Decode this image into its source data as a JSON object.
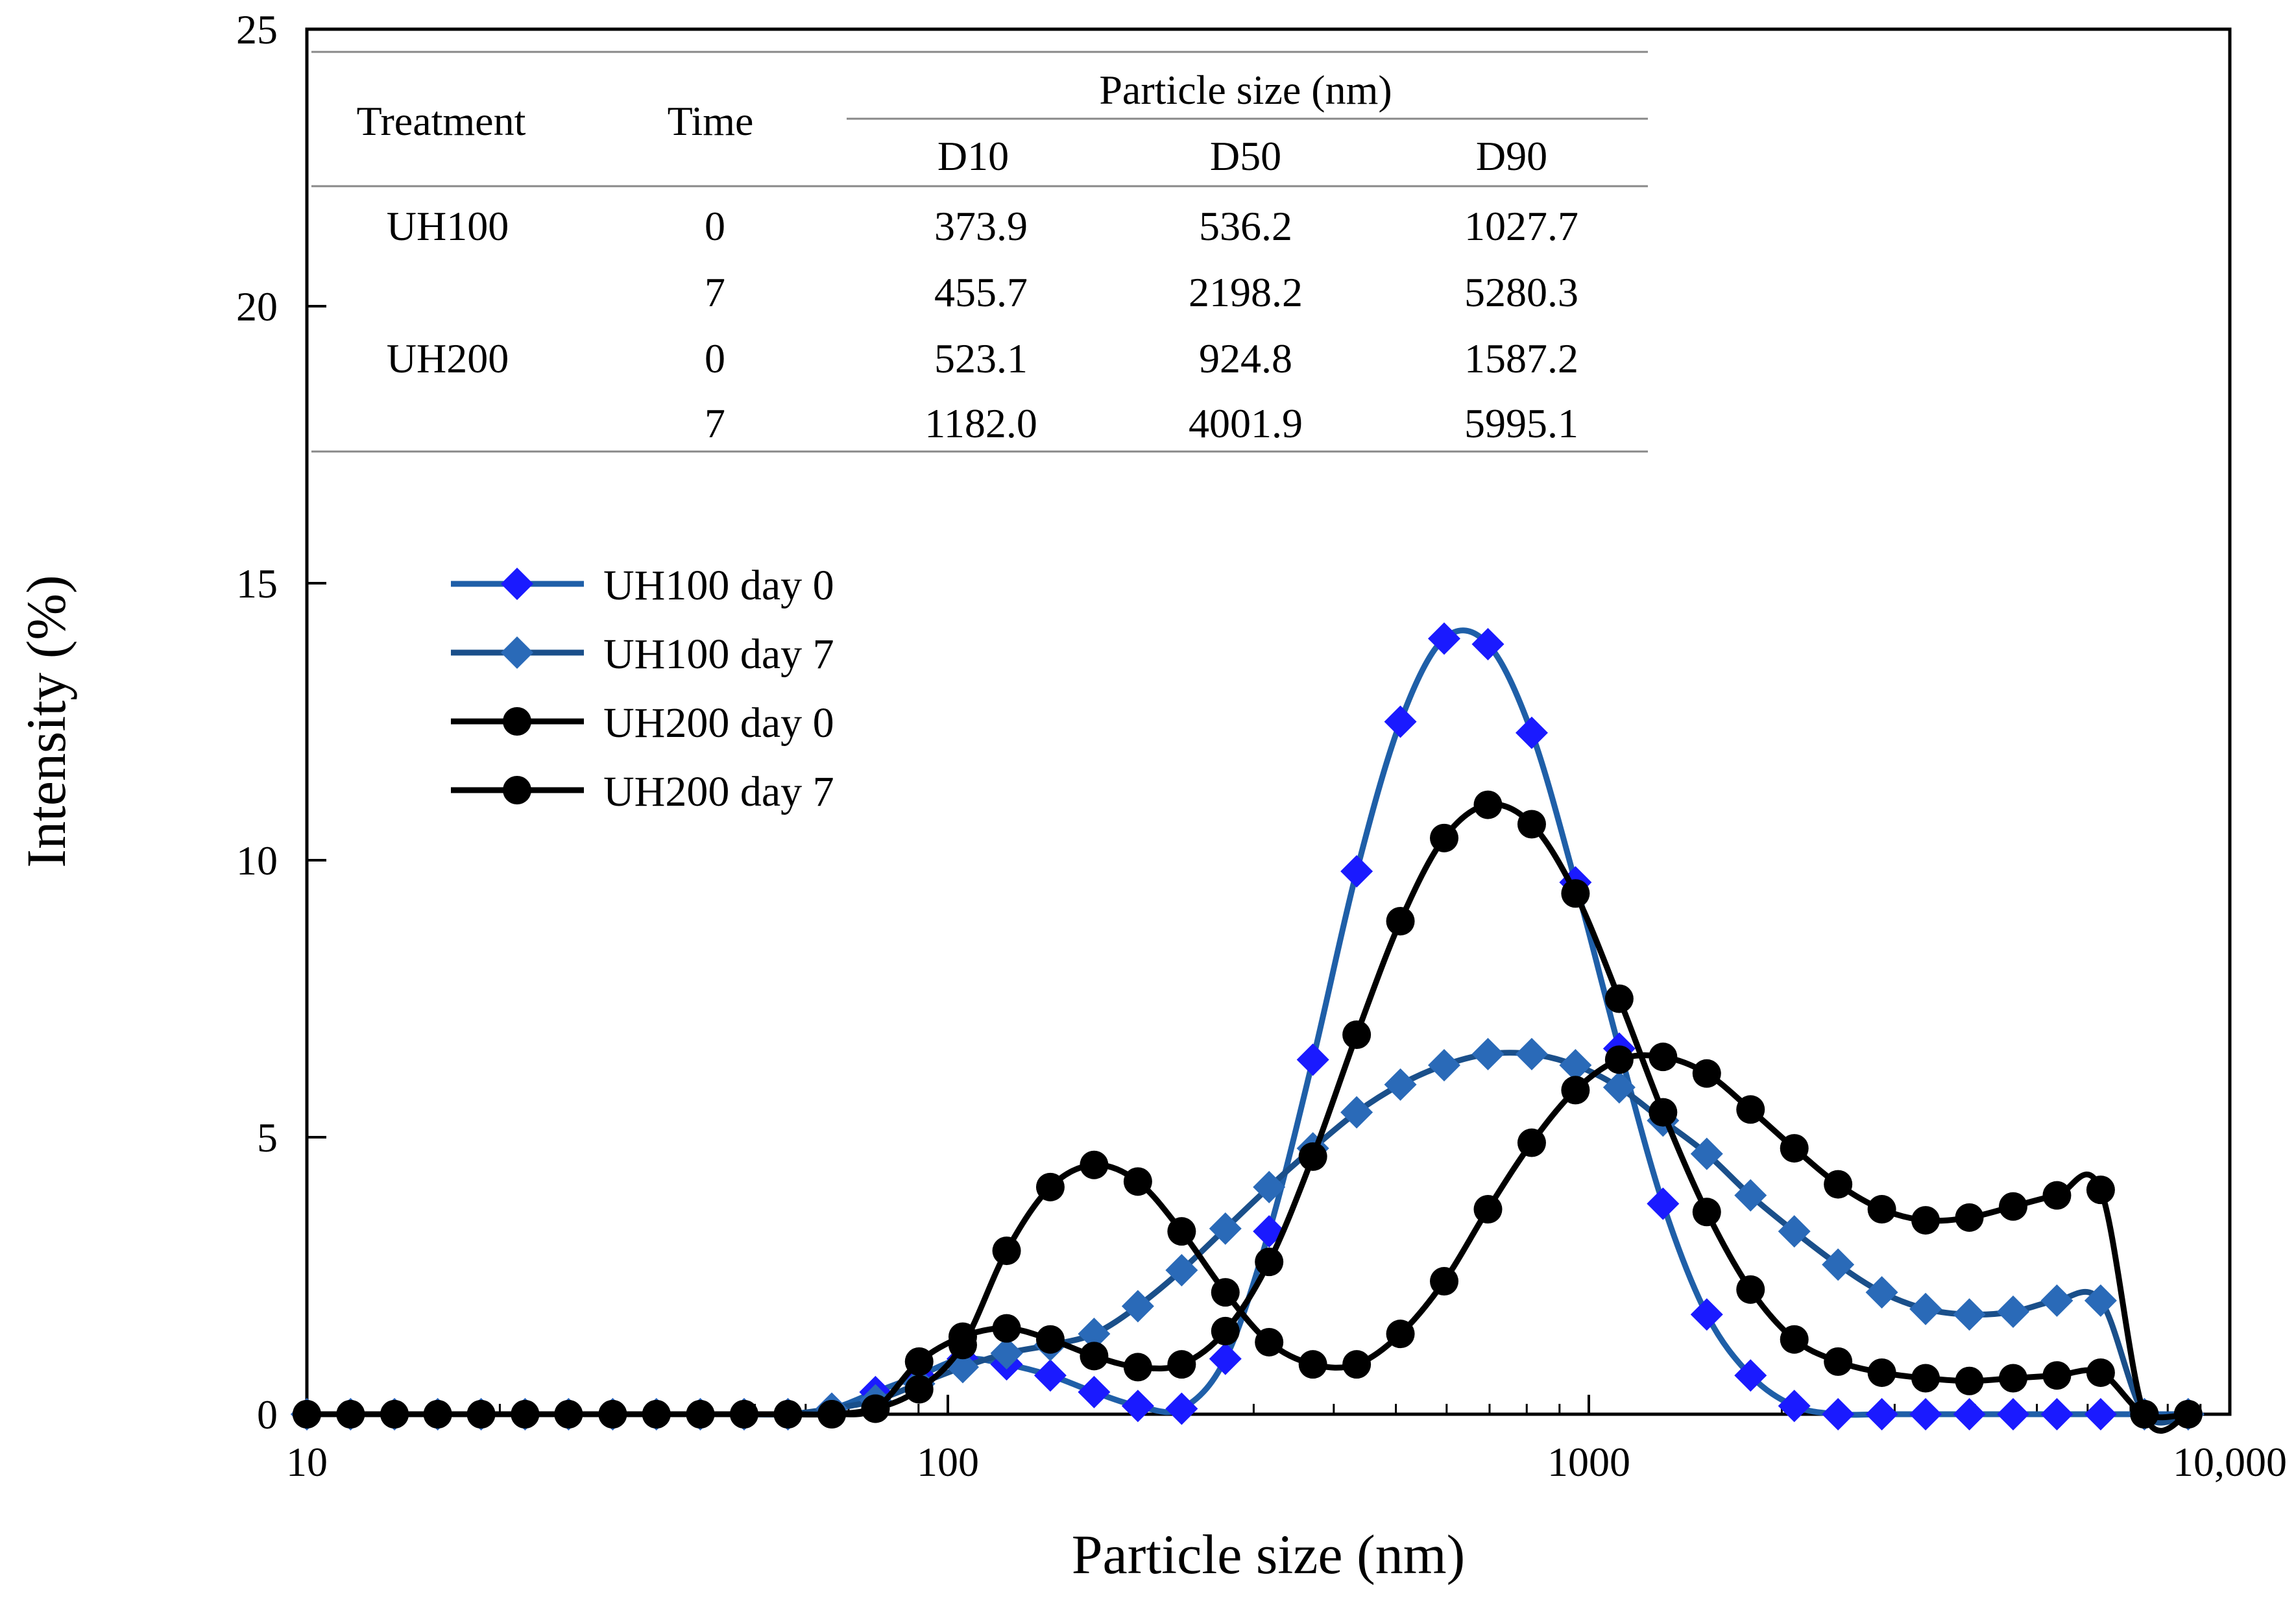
{
  "chart_data": {
    "type": "line",
    "xlabel": "Particle size (nm)",
    "ylabel": "Intensity (%)",
    "xscale": "log",
    "xlim": [
      10,
      10000
    ],
    "ylim": [
      0,
      25
    ],
    "xticks": [
      10,
      100,
      1000,
      10000
    ],
    "xtick_labels": [
      "10",
      "100",
      "1000",
      "10,000"
    ],
    "yticks": [
      0,
      5,
      10,
      15,
      20,
      25
    ],
    "ytick_labels": [
      "0",
      "5",
      "10",
      "15",
      "20",
      "25"
    ],
    "grid": false,
    "legend_position": "left-middle",
    "x": [
      10,
      11.7,
      13.7,
      16,
      18.7,
      21.9,
      25.6,
      30,
      35.1,
      41.1,
      48.1,
      56.3,
      65.9,
      77.1,
      90.2,
      105.5,
      123.5,
      144.5,
      169.1,
      197.9,
      231.6,
      271,
      317.1,
      371.1,
      434.3,
      508.2,
      594.7,
      696,
      814.5,
      953.1,
      1115.4,
      1305.3,
      1527.5,
      1787.6,
      2091.9,
      2448.1,
      2864.8,
      3352.6,
      3923.4,
      4591.3,
      5373,
      6287.8,
      7358.2,
      8611
    ],
    "series": [
      {
        "name": "UH100 day 0",
        "marker": "diamond",
        "color": "#1a1aff",
        "line_color": "#1f5fa8",
        "values": [
          0,
          0,
          0,
          0,
          0,
          0,
          0,
          0,
          0,
          0,
          0,
          0,
          0.1,
          0.4,
          0.7,
          1.0,
          0.9,
          0.7,
          0.4,
          0.15,
          0.1,
          1.0,
          3.3,
          6.4,
          9.8,
          12.5,
          14.0,
          13.9,
          12.3,
          9.6,
          6.6,
          3.8,
          1.8,
          0.7,
          0.15,
          0,
          0,
          0,
          0,
          0,
          0,
          0,
          0,
          0
        ]
      },
      {
        "name": "UH100 day 7",
        "marker": "diamond",
        "color": "#2a6ab8",
        "line_color": "#1a4f8a",
        "values": [
          0,
          0,
          0,
          0,
          0,
          0,
          0,
          0,
          0,
          0,
          0,
          0,
          0.1,
          0.25,
          0.55,
          0.85,
          1.1,
          1.25,
          1.45,
          1.95,
          2.6,
          3.35,
          4.1,
          4.8,
          5.45,
          5.95,
          6.3,
          6.5,
          6.5,
          6.3,
          5.9,
          5.3,
          4.7,
          3.95,
          3.3,
          2.7,
          2.2,
          1.9,
          1.8,
          1.85,
          2.05,
          2.05,
          0,
          0
        ]
      },
      {
        "name": "UH200 day 0",
        "marker": "circle",
        "color": "#000000",
        "line_color": "#000000",
        "values": [
          0,
          0,
          0,
          0,
          0,
          0,
          0,
          0,
          0,
          0,
          0,
          0,
          0,
          0.1,
          0.45,
          1.25,
          2.95,
          4.1,
          4.5,
          4.2,
          3.3,
          2.2,
          1.3,
          0.9,
          0.9,
          1.45,
          2.4,
          3.7,
          4.9,
          5.85,
          6.4,
          6.45,
          6.15,
          5.5,
          4.8,
          4.15,
          3.7,
          3.5,
          3.55,
          3.75,
          3.95,
          4.05,
          0,
          0
        ]
      },
      {
        "name": "UH200 day 7",
        "marker": "circle",
        "color": "#000000",
        "line_color": "#000000",
        "values": [
          0,
          0,
          0,
          0,
          0,
          0,
          0,
          0,
          0,
          0,
          0,
          0,
          0,
          0.1,
          0.95,
          1.4,
          1.55,
          1.35,
          1.05,
          0.85,
          0.9,
          1.5,
          2.75,
          4.65,
          6.85,
          8.9,
          10.4,
          11.0,
          10.65,
          9.4,
          7.5,
          5.45,
          3.65,
          2.25,
          1.35,
          0.95,
          0.75,
          0.65,
          0.6,
          0.65,
          0.7,
          0.75,
          0,
          0
        ]
      }
    ]
  },
  "table": {
    "headers": {
      "treatment": "Treatment",
      "time": "Time",
      "group": "Particle size (nm)",
      "d10": "D10",
      "d50": "D50",
      "d90": "D90"
    },
    "rows": [
      {
        "treatment": "UH100",
        "time": "0",
        "d10": "373.9",
        "d50": "536.2",
        "d90": "1027.7"
      },
      {
        "treatment": "",
        "time": "7",
        "d10": "455.7",
        "d50": "2198.2",
        "d90": "5280.3"
      },
      {
        "treatment": "UH200",
        "time": "0",
        "d10": "523.1",
        "d50": "924.8",
        "d90": "1587.2"
      },
      {
        "treatment": "",
        "time": "7",
        "d10": "1182.0",
        "d50": "4001.9",
        "d90": "5995.1"
      }
    ]
  }
}
